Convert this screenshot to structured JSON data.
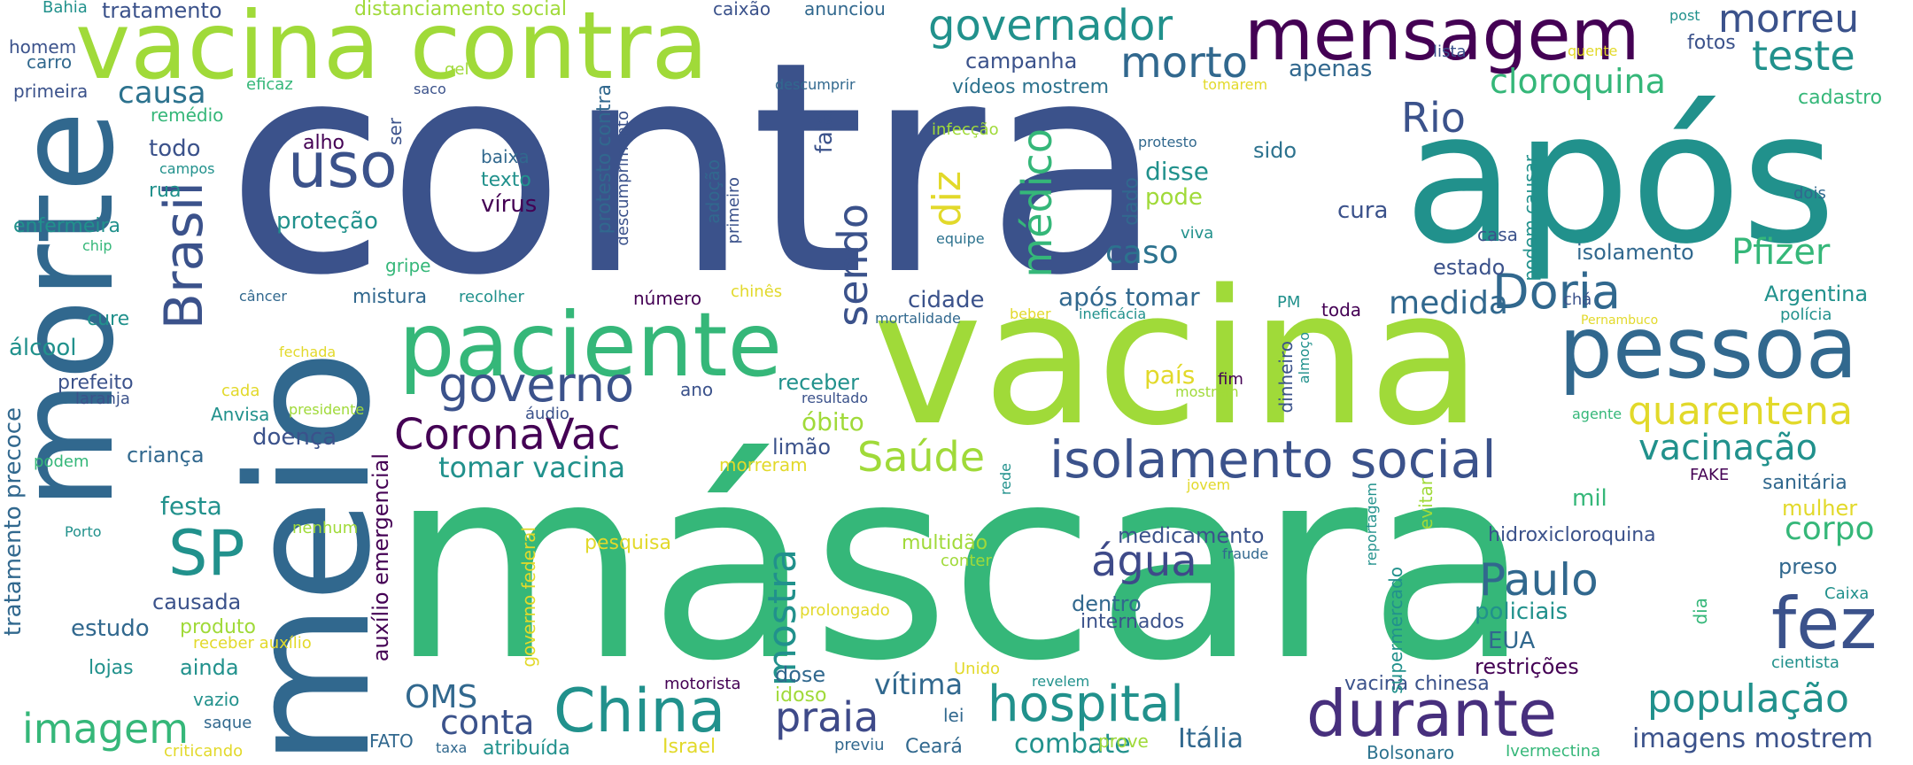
{
  "palette": {
    "purple": "#440154",
    "indigo": "#3b528b",
    "blue": "#31688e",
    "teal": "#21918c",
    "green": "#35b779",
    "lime": "#a0da39",
    "yellow": "#e2d92a"
  },
  "words": {
    "contra": "contra",
    "mascara": "máscara",
    "vacina": "vacina",
    "apos": "após",
    "meio": "meio",
    "morte": "morte",
    "vacina_contra": "vacina contra",
    "mensagem": "mensagem",
    "paciente": "paciente",
    "pessoa": "pessoa",
    "isolamento_social": "isolamento social",
    "durante": "durante",
    "china": "China",
    "hospital": "hospital",
    "fez": "fez",
    "governo": "governo",
    "coronavac": "CoronaVac",
    "brasil": "Brasil",
    "uso": "uso",
    "sp": "SP",
    "imagem": "imagem",
    "doria": "Doria",
    "paulo": "Paulo",
    "populacao": "população",
    "governador": "governador",
    "morto": "morto",
    "morreu": "morreu",
    "teste": "teste",
    "rio": "Rio",
    "cloroquina": "cloroquina",
    "quarentena": "quarentena",
    "vacinacao": "vacinação",
    "saude": "Saúde",
    "agua": "água",
    "praia": "praia",
    "medico": "médico",
    "sendo": "sendo",
    "mostra": "mostra",
    "pfizer": "Pfizer",
    "diz": "diz",
    "caso": "caso",
    "medida": "medida",
    "corpo": "corpo",
    "tomar_vacina": "tomar vacina",
    "oms": "OMS",
    "conta": "conta",
    "italia": "Itália",
    "combate": "combate",
    "imagens_mostrem": "imagens mostrem",
    "vitima": "vítima",
    "causa": "causa",
    "protecao": "proteção",
    "campanha": "campanha",
    "apenas": "apenas",
    "videos_mostrem": "vídeos mostrem",
    "cura": "cura",
    "disse": "disse",
    "pode": "pode",
    "sido": "sido",
    "apos_tomar": "após tomar",
    "cidade": "cidade",
    "isolamento": "isolamento",
    "estado": "estado",
    "argentina": "Argentina",
    "pais": "país",
    "obito": "óbito",
    "receber": "receber",
    "doenca": "doença",
    "festa": "festa",
    "crianca": "criança",
    "limao": "limão",
    "estudo": "estudo",
    "causada": "causada",
    "produto": "produto",
    "ainda": "ainda",
    "lojas": "lojas",
    "dose": "dose",
    "idoso": "idoso",
    "medicamento": "medicamento",
    "dentro": "dentro",
    "internados": "internados",
    "hidroxicloroquina": "hidroxicloroquina",
    "policiais": "policiais",
    "eua": "EUA",
    "restricoes": "restrições",
    "vacina_chinesa": "vacina chinesa",
    "preso": "preso",
    "mulher": "mulher",
    "mil": "mil",
    "tratamento_precoce": "tratamento precoce",
    "auxilio_emergencial": "auxílio emergencial",
    "governo_federal": "governo federal",
    "protesto_contra": "protesto contra",
    "descumprimento": "descumprimento",
    "todo": "todo",
    "rua": "rua",
    "enfermeira": "enfermeira",
    "alcool": "álcool",
    "cure": "cure",
    "prefeito": "prefeito",
    "laranja": "laranja",
    "anvisa": "Anvisa",
    "podem": "podem",
    "porto": "Porto",
    "texto": "texto",
    "virus": "vírus",
    "baixa": "baixa",
    "alho": "alho",
    "ser": "ser",
    "mistura": "mistura",
    "recolher": "recolher",
    "numero": "número",
    "gripe": "gripe",
    "cancer": "câncer",
    "fala": "fala",
    "adocao": "adoção",
    "primeiro": "primeiro",
    "chines": "chinês",
    "fechada": "fechada",
    "presidente": "presidente",
    "cada": "cada",
    "audio": "áudio",
    "ano": "ano",
    "resultado": "resultado",
    "morreram": "morreram",
    "pesquisa": "pesquisa",
    "multidao": "multidão",
    "conter": "conter",
    "prolongado": "prolongado",
    "nenhum": "nenhum",
    "receber_auxilio": "receber auxílio",
    "vazio": "vazio",
    "saque": "saque",
    "criticando": "criticando",
    "taxa": "taxa",
    "fato": "FATO",
    "atribuida": "atribuída",
    "israel": "Israel",
    "previu": "previu",
    "ceara": "Ceará",
    "lei": "lei",
    "prove": "prove",
    "bolsonaro": "Bolsonaro",
    "ivermectina": "Ivermectina",
    "unido": "Unido",
    "revelem": "revelem",
    "motorista": "motorista",
    "caixa": "Caixa",
    "cientista": "cientista",
    "dia": "dia",
    "supermercado": "supermercado",
    "reportagem": "reportagem",
    "evitar": "evitar",
    "jovem": "jovem",
    "rede": "rede",
    "fraude": "fraude",
    "fake": "FAKE",
    "sanitaria": "sanitária",
    "agente": "agente",
    "pernambuco": "Pernambuco",
    "policia": "polícia",
    "cha": "chá",
    "toda": "toda",
    "pm": "PM",
    "dinheiro": "dinheiro",
    "almoco": "almoço",
    "fim": "fim",
    "mostrem": "mostrem",
    "beber": "beber",
    "ineficacia": "ineficácia",
    "mortalidade": "mortalidade",
    "dado": "dado",
    "viva": "viva",
    "equipe": "equipe",
    "casa": "casa",
    "podem_causar": "podem causar",
    "protesto": "protesto",
    "infeccao": "infecção",
    "tomarem": "tomarem",
    "lista": "lista",
    "quente": "quente",
    "fotos": "fotos",
    "post": "post",
    "cadastro": "cadastro",
    "dois": "dois",
    "bahia": "Bahia",
    "tratamento": "tratamento",
    "distanciamento_social": "distanciamento social",
    "caixao": "caixão",
    "anunciou": "anunciou",
    "homem": "homem",
    "carro": "carro",
    "gel": "gel",
    "saco": "saco",
    "primeira": "primeira",
    "eficaz": "eficaz",
    "descumprir": "descumprir",
    "remedio": "remédio",
    "campos": "campos",
    "chip": "chip"
  }
}
